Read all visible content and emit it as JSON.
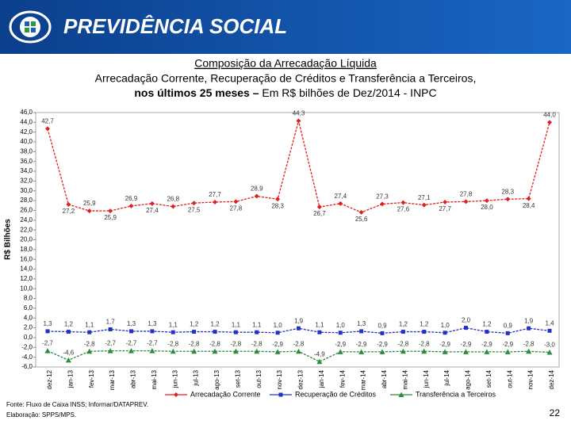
{
  "header": {
    "brand": "PREVIDÊNCIA SOCIAL"
  },
  "chart_data": {
    "type": "line",
    "title": "Composição da Arrecadação Líquida",
    "subtitle": "Arrecadação Corrente, Recuperação de Créditos e Transferência a Terceiros,",
    "subtitle_bold": "nos últimos 25 meses –",
    "subtitle_unit": "Em R$ bilhões de Dez/2014 - INPC",
    "y_label": "R$ Bilhões",
    "categories": [
      "dez-12",
      "jan-13",
      "fev-13",
      "mar-13",
      "abr-13",
      "mai-13",
      "jun-13",
      "jul-13",
      "ago-13",
      "set-13",
      "out-13",
      "nov-13",
      "dez-13",
      "jan-14",
      "fev-14",
      "mar-14",
      "abr-14",
      "mai-14",
      "jun-14",
      "jul-14",
      "ago-14",
      "set-14",
      "out-14",
      "nov-14",
      "dez-14"
    ],
    "series": [
      {
        "name": "Arrecadação Corrente",
        "color": "#e21f1f",
        "marker": "diamond",
        "values": [
          42.7,
          27.2,
          25.9,
          25.9,
          26.9,
          27.4,
          26.8,
          27.5,
          27.7,
          27.8,
          28.9,
          28.3,
          44.3,
          26.7,
          27.4,
          25.6,
          27.3,
          27.6,
          27.1,
          27.7,
          27.8,
          28.0,
          28.3,
          28.4,
          44.0
        ],
        "value_labels": [
          "42,7",
          "27,2",
          "25,9",
          "25,9",
          "26,9",
          "27,4",
          "26,8",
          "27,5",
          "27,7",
          "27,8",
          "28,9",
          "28,3",
          "44,3",
          "26,7",
          "27,4",
          "25,6",
          "27,3",
          "27,6",
          "27,1",
          "27,7",
          "27,8",
          "28,0",
          "28,3",
          "28,4",
          "44,0"
        ]
      },
      {
        "name": "Recuperação de Créditos",
        "color": "#2232c2",
        "marker": "square",
        "values": [
          1.3,
          1.2,
          1.1,
          1.7,
          1.3,
          1.3,
          1.1,
          1.2,
          1.2,
          1.1,
          1.1,
          1.0,
          1.9,
          1.1,
          1.0,
          1.3,
          0.9,
          1.2,
          1.2,
          1.0,
          2.0,
          1.2,
          0.9,
          1.9,
          1.4
        ],
        "value_labels": [
          "1,3",
          "1,2",
          "1,1",
          "1,7",
          "1,3",
          "1,3",
          "1,1",
          "1,2",
          "1,2",
          "1,1",
          "1,1",
          "1,0",
          "1,9",
          "1,1",
          "1,0",
          "1,3",
          "0,9",
          "1,2",
          "1,2",
          "1,0",
          "2,0",
          "1,2",
          "0,9",
          "1,9",
          "1,4"
        ]
      },
      {
        "name": "Transferência a Terceiros",
        "color": "#2b8c3b",
        "marker": "triangle",
        "values": [
          -2.7,
          -4.6,
          -2.8,
          -2.7,
          -2.7,
          -2.7,
          -2.8,
          -2.8,
          -2.8,
          -2.8,
          -2.8,
          -2.9,
          -2.8,
          -4.9,
          -2.9,
          -2.9,
          -2.9,
          -2.8,
          -2.8,
          -2.9,
          -2.9,
          -2.9,
          -2.9,
          -2.8,
          -3.0
        ],
        "value_labels": [
          "-2,7",
          "-4,6",
          "-2,8",
          "-2,7",
          "-2,7",
          "-2,7",
          "-2,8",
          "-2,8",
          "-2,8",
          "-2,8",
          "-2,8",
          "-2,9",
          "-2,8",
          "-4,9",
          "-2,9",
          "-2,9",
          "-2,9",
          "-2,8",
          "-2,8",
          "-2,9",
          "-2,9",
          "-2,9",
          "-2,9",
          "-2,8",
          "-3,0"
        ]
      }
    ],
    "ylim": [
      -6,
      46
    ],
    "yticks": [
      {
        "value": -6,
        "label": "-6,0"
      },
      {
        "value": -4,
        "label": "-4,0"
      },
      {
        "value": -2,
        "label": "-2,0"
      },
      {
        "value": 0,
        "label": "0,0"
      },
      {
        "value": 2,
        "label": "2,0"
      },
      {
        "value": 4,
        "label": "4,0"
      },
      {
        "value": 6,
        "label": "6,0"
      },
      {
        "value": 8,
        "label": "8,0"
      },
      {
        "value": 10,
        "label": "10,0"
      },
      {
        "value": 12,
        "label": "12,0"
      },
      {
        "value": 14,
        "label": "14,0"
      },
      {
        "value": 16,
        "label": "16,0"
      },
      {
        "value": 18,
        "label": "18,0"
      },
      {
        "value": 20,
        "label": "20,0"
      },
      {
        "value": 22,
        "label": "22,0"
      },
      {
        "value": 24,
        "label": "24,0"
      },
      {
        "value": 26,
        "label": "26,0"
      },
      {
        "value": 28,
        "label": "28,0"
      },
      {
        "value": 30,
        "label": "30,0"
      },
      {
        "value": 32,
        "label": "32,0"
      },
      {
        "value": 34,
        "label": "34,0"
      },
      {
        "value": 36,
        "label": "36,0"
      },
      {
        "value": 38,
        "label": "38,0"
      },
      {
        "value": 40,
        "label": "40,0"
      },
      {
        "value": 42,
        "label": "42,0"
      },
      {
        "value": 44,
        "label": "44,0"
      },
      {
        "value": 46,
        "label": "46,0"
      }
    ],
    "grid": false,
    "legend": "bottom"
  },
  "footer": {
    "source": "Fonte: Fluxo de Caixa INSS; Informar/DATAPREV.",
    "credit": "Elaboração: SPPS/MPS.",
    "page": "22"
  }
}
